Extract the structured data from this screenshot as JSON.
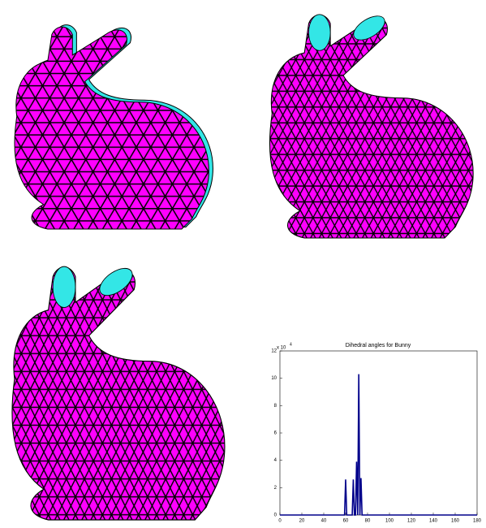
{
  "chart_data": {
    "type": "line",
    "title": "Dihedral angles for Bunny",
    "y_multiplier": {
      "base": "x 10",
      "exponent": "4"
    },
    "xlim": [
      0,
      180
    ],
    "xticks": [
      0,
      20,
      40,
      60,
      80,
      100,
      120,
      140,
      160,
      180
    ],
    "ylim": [
      0,
      12
    ],
    "yticks": [
      0,
      2,
      4,
      6,
      8,
      10,
      12
    ],
    "series": [
      {
        "color": "#00008b",
        "x": [
          0,
          59,
          60,
          61,
          66,
          67,
          68,
          69,
          70,
          71,
          72,
          73,
          74,
          75,
          76,
          180
        ],
        "values": [
          0,
          0,
          2.6,
          0,
          0,
          2.6,
          0,
          0,
          3.9,
          0,
          10.3,
          0,
          2.7,
          0,
          0,
          0
        ]
      }
    ]
  }
}
